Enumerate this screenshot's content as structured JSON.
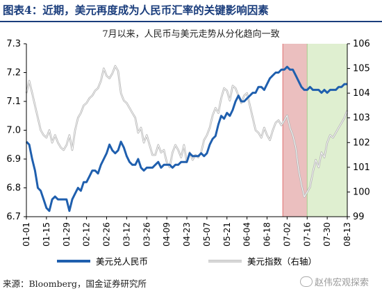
{
  "title": "图表4：近期，美元再度成为人民币汇率的关键影响因素",
  "source": "来源：Bloomberg，国金证券研究所",
  "watermark": "赵伟宏观探索",
  "colors": {
    "title": "#1a3d7c",
    "usdcny": "#1f5fae",
    "dxy": "#b4b4b4",
    "band_red": "#e8b4b4",
    "band_green": "#d9ecc8",
    "band_edge": "#e07070"
  },
  "chart_data": {
    "type": "line",
    "title": "7月以来，人民币与美元走势从分化趋向一致",
    "x_ticks": [
      "01-01",
      "01-15",
      "01-29",
      "02-12",
      "02-26",
      "03-12",
      "03-26",
      "04-09",
      "04-23",
      "05-07",
      "05-21",
      "06-04",
      "06-18",
      "07-02",
      "07-16",
      "07-30",
      "08-13"
    ],
    "ylim_left": [
      6.7,
      7.3
    ],
    "yticks_left": [
      "6.7",
      "6.8",
      "6.9",
      "7.0",
      "7.1",
      "7.2",
      "7.3"
    ],
    "ylim_right": [
      99,
      106
    ],
    "yticks_right": [
      "99",
      "100",
      "101",
      "102",
      "103",
      "104",
      "105",
      "106"
    ],
    "grid": false,
    "legend_position": "bottom",
    "shaded_regions": [
      {
        "x_start": "06-29",
        "x_end": "07-16",
        "color": "red"
      },
      {
        "x_start": "07-16",
        "x_end": "08-13",
        "color": "green"
      }
    ],
    "series": [
      {
        "name": "美元兑人民币",
        "axis": "left",
        "points": [
          [
            "01-01",
            6.96
          ],
          [
            "01-03",
            6.95
          ],
          [
            "01-05",
            6.9
          ],
          [
            "01-07",
            6.86
          ],
          [
            "01-09",
            6.8
          ],
          [
            "01-11",
            6.79
          ],
          [
            "01-13",
            6.76
          ],
          [
            "01-15",
            6.73
          ],
          [
            "01-17",
            6.72
          ],
          [
            "01-19",
            6.76
          ],
          [
            "01-21",
            6.77
          ],
          [
            "01-23",
            6.76
          ],
          [
            "01-25",
            6.76
          ],
          [
            "01-27",
            6.76
          ],
          [
            "01-29",
            6.76
          ],
          [
            "01-31",
            6.72
          ],
          [
            "02-02",
            6.76
          ],
          [
            "02-04",
            6.78
          ],
          [
            "02-06",
            6.8
          ],
          [
            "02-08",
            6.79
          ],
          [
            "02-10",
            6.82
          ],
          [
            "02-12",
            6.82
          ],
          [
            "02-14",
            6.84
          ],
          [
            "02-16",
            6.86
          ],
          [
            "02-18",
            6.86
          ],
          [
            "02-20",
            6.85
          ],
          [
            "02-22",
            6.88
          ],
          [
            "02-24",
            6.9
          ],
          [
            "02-26",
            6.92
          ],
          [
            "02-28",
            6.95
          ],
          [
            "03-02",
            6.93
          ],
          [
            "03-04",
            6.92
          ],
          [
            "03-06",
            6.93
          ],
          [
            "03-08",
            6.96
          ],
          [
            "03-10",
            6.94
          ],
          [
            "03-12",
            6.91
          ],
          [
            "03-14",
            6.89
          ],
          [
            "03-16",
            6.88
          ],
          [
            "03-18",
            6.88
          ],
          [
            "03-20",
            6.9
          ],
          [
            "03-22",
            6.87
          ],
          [
            "03-24",
            6.86
          ],
          [
            "03-26",
            6.87
          ],
          [
            "03-28",
            6.87
          ],
          [
            "03-30",
            6.87
          ],
          [
            "04-01",
            6.88
          ],
          [
            "04-03",
            6.89
          ],
          [
            "04-05",
            6.87
          ],
          [
            "04-07",
            6.88
          ],
          [
            "04-09",
            6.88
          ],
          [
            "04-11",
            6.88
          ],
          [
            "04-13",
            6.87
          ],
          [
            "04-15",
            6.88
          ],
          [
            "04-17",
            6.88
          ],
          [
            "04-19",
            6.89
          ],
          [
            "04-21",
            6.89
          ],
          [
            "04-23",
            6.89
          ],
          [
            "04-25",
            6.92
          ],
          [
            "04-27",
            6.91
          ],
          [
            "04-29",
            6.91
          ],
          [
            "05-01",
            6.91
          ],
          [
            "05-03",
            6.92
          ],
          [
            "05-05",
            6.91
          ],
          [
            "05-07",
            6.92
          ],
          [
            "05-09",
            6.95
          ],
          [
            "05-11",
            6.97
          ],
          [
            "05-13",
            6.98
          ],
          [
            "05-15",
            7.02
          ],
          [
            "05-17",
            7.05
          ],
          [
            "05-19",
            7.04
          ],
          [
            "05-21",
            7.06
          ],
          [
            "05-23",
            7.05
          ],
          [
            "05-25",
            7.07
          ],
          [
            "05-27",
            7.1
          ],
          [
            "05-29",
            7.12
          ],
          [
            "05-31",
            7.1
          ],
          [
            "06-02",
            7.1
          ],
          [
            "06-04",
            7.11
          ],
          [
            "06-06",
            7.12
          ],
          [
            "06-08",
            7.13
          ],
          [
            "06-10",
            7.13
          ],
          [
            "06-12",
            7.15
          ],
          [
            "06-14",
            7.15
          ],
          [
            "06-16",
            7.14
          ],
          [
            "06-18",
            7.16
          ],
          [
            "06-20",
            7.18
          ],
          [
            "06-22",
            7.19
          ],
          [
            "06-24",
            7.2
          ],
          [
            "06-26",
            7.2
          ],
          [
            "06-28",
            7.21
          ],
          [
            "06-30",
            7.21
          ],
          [
            "07-02",
            7.22
          ],
          [
            "07-04",
            7.21
          ],
          [
            "07-06",
            7.21
          ],
          [
            "07-08",
            7.19
          ],
          [
            "07-10",
            7.17
          ],
          [
            "07-12",
            7.15
          ],
          [
            "07-14",
            7.14
          ],
          [
            "07-16",
            7.14
          ],
          [
            "07-18",
            7.15
          ],
          [
            "07-20",
            7.14
          ],
          [
            "07-22",
            7.14
          ],
          [
            "07-24",
            7.14
          ],
          [
            "07-26",
            7.13
          ],
          [
            "07-28",
            7.14
          ],
          [
            "07-30",
            7.13
          ],
          [
            "08-01",
            7.14
          ],
          [
            "08-03",
            7.14
          ],
          [
            "08-05",
            7.14
          ],
          [
            "08-07",
            7.15
          ],
          [
            "08-09",
            7.15
          ],
          [
            "08-11",
            7.16
          ],
          [
            "08-13",
            7.16
          ]
        ]
      },
      {
        "name": "美元指数（右轴）",
        "axis": "right",
        "points": [
          [
            "01-01",
            104.0
          ],
          [
            "01-03",
            104.5
          ],
          [
            "01-05",
            104.0
          ],
          [
            "01-07",
            103.5
          ],
          [
            "01-09",
            103.0
          ],
          [
            "01-11",
            102.5
          ],
          [
            "01-13",
            102.3
          ],
          [
            "01-15",
            102.2
          ],
          [
            "01-17",
            102.5
          ],
          [
            "01-19",
            102.0
          ],
          [
            "01-21",
            102.3
          ],
          [
            "01-23",
            102.0
          ],
          [
            "01-25",
            101.8
          ],
          [
            "01-27",
            101.7
          ],
          [
            "01-29",
            101.9
          ],
          [
            "01-31",
            102.3
          ],
          [
            "02-02",
            101.7
          ],
          [
            "02-04",
            102.5
          ],
          [
            "02-06",
            103.0
          ],
          [
            "02-08",
            103.2
          ],
          [
            "02-10",
            103.5
          ],
          [
            "02-12",
            103.6
          ],
          [
            "02-14",
            103.8
          ],
          [
            "02-16",
            103.9
          ],
          [
            "02-18",
            104.1
          ],
          [
            "02-20",
            104.2
          ],
          [
            "02-22",
            104.5
          ],
          [
            "02-24",
            105.0
          ],
          [
            "02-26",
            104.7
          ],
          [
            "02-28",
            104.6
          ],
          [
            "03-02",
            104.8
          ],
          [
            "03-04",
            105.1
          ],
          [
            "03-06",
            104.9
          ],
          [
            "03-08",
            104.0
          ],
          [
            "03-10",
            103.7
          ],
          [
            "03-12",
            103.6
          ],
          [
            "03-14",
            103.4
          ],
          [
            "03-16",
            103.2
          ],
          [
            "03-18",
            103.0
          ],
          [
            "03-20",
            102.4
          ],
          [
            "03-22",
            102.6
          ],
          [
            "03-24",
            102.0
          ],
          [
            "03-26",
            102.3
          ],
          [
            "03-28",
            101.9
          ],
          [
            "03-30",
            101.5
          ],
          [
            "04-01",
            101.5
          ],
          [
            "04-03",
            101.9
          ],
          [
            "04-05",
            101.6
          ],
          [
            "04-07",
            101.7
          ],
          [
            "04-09",
            101.2
          ],
          [
            "04-11",
            101.0
          ],
          [
            "04-13",
            101.6
          ],
          [
            "04-15",
            101.9
          ],
          [
            "04-17",
            101.7
          ],
          [
            "04-19",
            101.4
          ],
          [
            "04-21",
            101.9
          ],
          [
            "04-23",
            101.2
          ],
          [
            "04-25",
            101.6
          ],
          [
            "04-27",
            101.3
          ],
          [
            "04-29",
            101.5
          ],
          [
            "05-01",
            101.4
          ],
          [
            "05-03",
            101.6
          ],
          [
            "05-05",
            102.1
          ],
          [
            "05-07",
            102.3
          ],
          [
            "05-09",
            102.6
          ],
          [
            "05-11",
            103.1
          ],
          [
            "05-13",
            103.4
          ],
          [
            "05-15",
            103.2
          ],
          [
            "05-17",
            103.8
          ],
          [
            "05-19",
            104.2
          ],
          [
            "05-21",
            104.1
          ],
          [
            "05-23",
            103.7
          ],
          [
            "05-25",
            104.3
          ],
          [
            "05-27",
            104.2
          ],
          [
            "05-29",
            103.9
          ],
          [
            "05-31",
            103.6
          ],
          [
            "06-02",
            103.9
          ],
          [
            "06-04",
            104.0
          ],
          [
            "06-06",
            103.5
          ],
          [
            "06-08",
            103.0
          ],
          [
            "06-10",
            102.5
          ],
          [
            "06-12",
            102.4
          ],
          [
            "06-14",
            102.2
          ],
          [
            "06-16",
            102.6
          ],
          [
            "06-18",
            102.3
          ],
          [
            "06-20",
            102.1
          ],
          [
            "06-22",
            102.5
          ],
          [
            "06-24",
            102.8
          ],
          [
            "06-26",
            102.9
          ],
          [
            "06-28",
            102.7
          ],
          [
            "06-30",
            102.9
          ],
          [
            "07-02",
            103.1
          ],
          [
            "07-04",
            102.6
          ],
          [
            "07-06",
            102.3
          ],
          [
            "07-08",
            101.8
          ],
          [
            "07-10",
            100.9
          ],
          [
            "07-12",
            100.3
          ],
          [
            "07-14",
            99.8
          ],
          [
            "07-16",
            100.0
          ],
          [
            "07-18",
            100.2
          ],
          [
            "07-20",
            100.8
          ],
          [
            "07-22",
            101.3
          ],
          [
            "07-24",
            101.0
          ],
          [
            "07-26",
            101.6
          ],
          [
            "07-28",
            101.4
          ],
          [
            "07-30",
            102.0
          ],
          [
            "08-01",
            102.3
          ],
          [
            "08-03",
            102.2
          ],
          [
            "08-05",
            102.4
          ],
          [
            "08-07",
            102.6
          ],
          [
            "08-09",
            102.8
          ],
          [
            "08-11",
            103.0
          ],
          [
            "08-13",
            103.3
          ]
        ]
      }
    ]
  }
}
